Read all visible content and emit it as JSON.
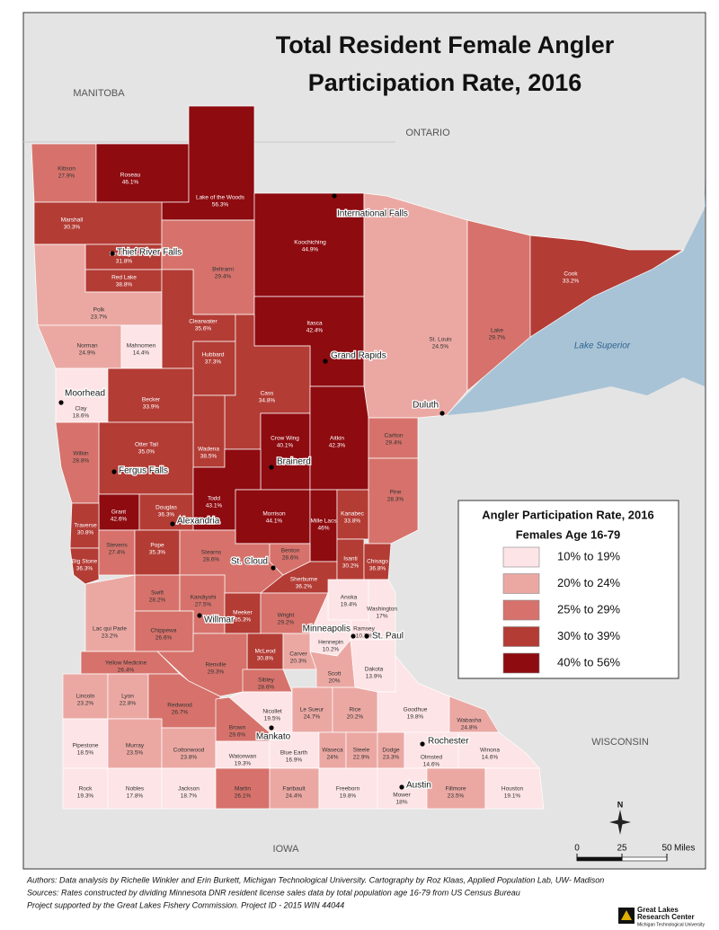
{
  "title_lines": [
    "Total Resident Female Angler",
    "Participation Rate, 2016"
  ],
  "regions": [
    "MANITOBA",
    "ONTARIO",
    "WISCONSIN",
    "IOWA"
  ],
  "lake_label": "Lake Superior",
  "legend": {
    "title": "Angler Participation Rate, 2016",
    "subtitle": "Females Age 16-79",
    "classes": [
      {
        "label": "10% to 19%",
        "min": 10,
        "color": "#fde4e6"
      },
      {
        "label": "20% to 24%",
        "min": 20,
        "color": "#eba8a3"
      },
      {
        "label": "25% to 29%",
        "min": 25,
        "color": "#d6726b"
      },
      {
        "label": "30% to 39%",
        "min": 30,
        "color": "#b33c35"
      },
      {
        "label": "40% to 56%",
        "min": 40,
        "color": "#8e0b10"
      }
    ]
  },
  "counties": [
    {
      "name": "Kittson",
      "value": 27.9,
      "value_label": "27.9%"
    },
    {
      "name": "Roseau",
      "value": 46.1,
      "value_label": "46.1%"
    },
    {
      "name": "Lake of the Woods",
      "value": 56.3,
      "value_label": "56.3%"
    },
    {
      "name": "Marshall",
      "value": 30.3,
      "value_label": "30.3%"
    },
    {
      "name": "Pennington",
      "value": 31.8,
      "value_label": "31.8%"
    },
    {
      "name": "Red Lake",
      "value": 38.8,
      "value_label": "38.8%"
    },
    {
      "name": "Koochiching",
      "value": 44.9,
      "value_label": "44.9%"
    },
    {
      "name": "Beltrami",
      "value": 29.4,
      "value_label": "29.4%"
    },
    {
      "name": "Polk",
      "value": 23.7,
      "value_label": "23.7%"
    },
    {
      "name": "Clearwater",
      "value": 35.6,
      "value_label": "35.6%"
    },
    {
      "name": "Norman",
      "value": 24.9,
      "value_label": "24.9%"
    },
    {
      "name": "Mahnomen",
      "value": 14.4,
      "value_label": "14.4%"
    },
    {
      "name": "Hubbard",
      "value": 37.3,
      "value_label": "37.3%"
    },
    {
      "name": "Itasca",
      "value": 42.4,
      "value_label": "42.4%"
    },
    {
      "name": "St. Louis",
      "value": 24.5,
      "value_label": "24.5%"
    },
    {
      "name": "Lake",
      "value": 29.7,
      "value_label": "29.7%"
    },
    {
      "name": "Cook",
      "value": 33.2,
      "value_label": "33.2%"
    },
    {
      "name": "Clay",
      "value": 18.6,
      "value_label": "18.6%"
    },
    {
      "name": "Becker",
      "value": 33.9,
      "value_label": "33.9%"
    },
    {
      "name": "Cass",
      "value": 34.8,
      "value_label": "34.8%"
    },
    {
      "name": "Wadena",
      "value": 38.5,
      "value_label": "38.5%"
    },
    {
      "name": "Otter Tail",
      "value": 35.0,
      "value_label": "35.0%"
    },
    {
      "name": "Wilkin",
      "value": 28.8,
      "value_label": "28.8%"
    },
    {
      "name": "Crow Wing",
      "value": 40.1,
      "value_label": "40.1%"
    },
    {
      "name": "Aitkin",
      "value": 42.3,
      "value_label": "42.3%"
    },
    {
      "name": "Carlton",
      "value": 29.4,
      "value_label": "29.4%"
    },
    {
      "name": "Pine",
      "value": 28.3,
      "value_label": "28.3%"
    },
    {
      "name": "Grant",
      "value": 42.6,
      "value_label": "42.6%"
    },
    {
      "name": "Douglas",
      "value": 36.3,
      "value_label": "36.3%"
    },
    {
      "name": "Todd",
      "value": 43.1,
      "value_label": "43.1%"
    },
    {
      "name": "Morrison",
      "value": 44.1,
      "value_label": "44.1%"
    },
    {
      "name": "Mille Lacs",
      "value": 46,
      "value_label": "46%"
    },
    {
      "name": "Kanabec",
      "value": 33.8,
      "value_label": "33.8%"
    },
    {
      "name": "Traverse",
      "value": 30.8,
      "value_label": "30.8%"
    },
    {
      "name": "Big Stone",
      "value": 36.3,
      "value_label": "36.3%"
    },
    {
      "name": "Stevens",
      "value": 27.4,
      "value_label": "27.4%"
    },
    {
      "name": "Pope",
      "value": 35.3,
      "value_label": "35.3%"
    },
    {
      "name": "Stearns",
      "value": 28.6,
      "value_label": "28.6%"
    },
    {
      "name": "Benton",
      "value": 28.6,
      "value_label": "28.6%"
    },
    {
      "name": "Sherburne",
      "value": 36.2,
      "value_label": "36.2%"
    },
    {
      "name": "Isanti",
      "value": 30.2,
      "value_label": "30.2%"
    },
    {
      "name": "Chisago",
      "value": 36.8,
      "value_label": "36.8%"
    },
    {
      "name": "Anoka",
      "value": 19.4,
      "value_label": "19.4%"
    },
    {
      "name": "Swift",
      "value": 28.2,
      "value_label": "28.2%"
    },
    {
      "name": "Kandiyohi",
      "value": 27.5,
      "value_label": "27.5%"
    },
    {
      "name": "Meeker",
      "value": 35.3,
      "value_label": "35.3%"
    },
    {
      "name": "Wright",
      "value": 29.2,
      "value_label": "29.2%"
    },
    {
      "name": "Washington",
      "value": 17,
      "value_label": "17%"
    },
    {
      "name": "Ramsey",
      "value": 10.7,
      "value_label": "10.7%"
    },
    {
      "name": "Hennepin",
      "value": 10.2,
      "value_label": "10.2%"
    },
    {
      "name": "Lac qui Parle",
      "value": 23.2,
      "value_label": "23.2%"
    },
    {
      "name": "Chippewa",
      "value": 26.6,
      "value_label": "26.6%"
    },
    {
      "name": "McLeod",
      "value": 30.8,
      "value_label": "30.8%"
    },
    {
      "name": "Carver",
      "value": 20.3,
      "value_label": "20.3%"
    },
    {
      "name": "Yellow Medicine",
      "value": 26.4,
      "value_label": "26.4%"
    },
    {
      "name": "Renville",
      "value": 29.3,
      "value_label": "29.3%"
    },
    {
      "name": "Sibley",
      "value": 28.6,
      "value_label": "28.6%"
    },
    {
      "name": "Scott",
      "value": 20,
      "value_label": "20%"
    },
    {
      "name": "Dakota",
      "value": 13.9,
      "value_label": "13.9%"
    },
    {
      "name": "Goodhue",
      "value": 19.8,
      "value_label": "19.8%"
    },
    {
      "name": "Wabasha",
      "value": 24.8,
      "value_label": "24.8%"
    },
    {
      "name": "Lincoln",
      "value": 23.2,
      "value_label": "23.2%"
    },
    {
      "name": "Lyon",
      "value": 22.8,
      "value_label": "22.8%"
    },
    {
      "name": "Redwood",
      "value": 26.7,
      "value_label": "26.7%"
    },
    {
      "name": "Brown",
      "value": 29.6,
      "value_label": "29.6%"
    },
    {
      "name": "Nicollet",
      "value": 19.5,
      "value_label": "19.5%"
    },
    {
      "name": "Le Sueur",
      "value": 24.7,
      "value_label": "24.7%"
    },
    {
      "name": "Rice",
      "value": 20.2,
      "value_label": "20.2%"
    },
    {
      "name": "Pipestone",
      "value": 18.5,
      "value_label": "18.5%"
    },
    {
      "name": "Murray",
      "value": 23.5,
      "value_label": "23.5%"
    },
    {
      "name": "Cottonwood",
      "value": 23.8,
      "value_label": "23.8%"
    },
    {
      "name": "Watonwan",
      "value": 19.3,
      "value_label": "19.3%"
    },
    {
      "name": "Blue Earth",
      "value": 16.9,
      "value_label": "16.9%"
    },
    {
      "name": "Waseca",
      "value": 24,
      "value_label": "24%"
    },
    {
      "name": "Steele",
      "value": 22.9,
      "value_label": "22.9%"
    },
    {
      "name": "Dodge",
      "value": 23.3,
      "value_label": "23.3%"
    },
    {
      "name": "Olmsted",
      "value": 14.6,
      "value_label": "14.6%"
    },
    {
      "name": "Winona",
      "value": 14.6,
      "value_label": "14.6%"
    },
    {
      "name": "Rock",
      "value": 19.3,
      "value_label": "19.3%"
    },
    {
      "name": "Nobles",
      "value": 17.8,
      "value_label": "17.8%"
    },
    {
      "name": "Jackson",
      "value": 18.7,
      "value_label": "18.7%"
    },
    {
      "name": "Martin",
      "value": 26.1,
      "value_label": "26.1%"
    },
    {
      "name": "Faribault",
      "value": 24.4,
      "value_label": "24.4%"
    },
    {
      "name": "Freeborn",
      "value": 19.8,
      "value_label": "19.8%"
    },
    {
      "name": "Mower",
      "value": 18,
      "value_label": "18%"
    },
    {
      "name": "Fillmore",
      "value": 23.5,
      "value_label": "23.5%"
    },
    {
      "name": "Houston",
      "value": 19.1,
      "value_label": "19.1%"
    }
  ],
  "cities": [
    "Thief River Falls",
    "Moorhead",
    "Fergus Falls",
    "Alexandria",
    "Brainerd",
    "Grand Rapids",
    "Duluth",
    "International Falls",
    "St. Cloud",
    "Willmar",
    "Minneapolis",
    "St. Paul",
    "Mankato",
    "Rochester",
    "Austin"
  ],
  "north": "N",
  "scale": {
    "ticks": [
      0,
      25,
      50
    ],
    "unit": "Miles"
  },
  "footer": [
    "Authors: Data analysis by Richelle Winkler and Erin Burkett, Michigan Technological University. Cartography by Roz Klaas, Applied Population Lab, UW- Madison",
    "Sources: Rates constructed by dividing Minnesota DNR resident license sales data by total population age 16-79 from US Census Bureau",
    "Project supported by the Great Lakes Fishery Commission. Project ID - 2015 WIN 44044"
  ],
  "logo": [
    "Great Lakes",
    "Research Center",
    "Michigan Technological University"
  ]
}
